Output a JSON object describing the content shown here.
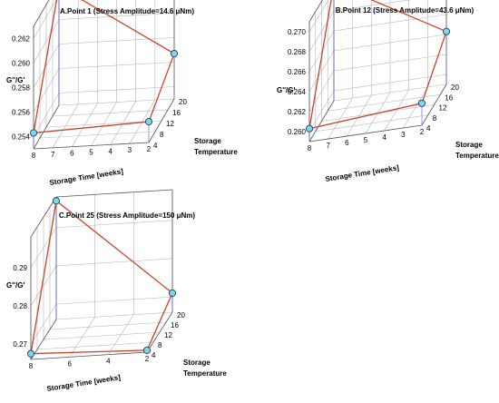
{
  "chart_data": [
    {
      "type": "scatter",
      "title": "A.Point 1 (Stress Amplitude=14.6 μNm)",
      "xlabel": "Storage Time [weeks]",
      "ylabel": "Storage Temperature",
      "zlabel": "G''/G'",
      "x_ticks": [
        "8",
        "7",
        "6",
        "5",
        "4",
        "3",
        "2"
      ],
      "y_ticks": [
        "4",
        "8",
        "12",
        "16",
        "20"
      ],
      "z_ticks": [
        "0.254",
        "0.256",
        "0.258",
        "0.260",
        "0.262"
      ],
      "xlim": [
        2,
        8
      ],
      "ylim": [
        4,
        20
      ],
      "zlim": [
        0.253,
        0.263
      ],
      "points": [
        {
          "x": 8,
          "y": 4,
          "z": 0.2543
        },
        {
          "x": 2,
          "y": 4,
          "z": 0.2547
        },
        {
          "x": 2,
          "y": 20,
          "z": 0.2567
        },
        {
          "x": 8,
          "y": 20,
          "z": 0.2627
        }
      ],
      "colors": {
        "line": "#c8442c",
        "marker": "#7fd7e8",
        "drop": "#6a6adf"
      }
    },
    {
      "type": "scatter",
      "title": "B.Point 12 (Stress Amplitude=43.6 μNm)",
      "xlabel": "Storage Time [weeks]",
      "ylabel": "Storage Temperature",
      "zlabel": "G''/G'",
      "x_ticks": [
        "8",
        "7",
        "6",
        "5",
        "4",
        "3",
        "2"
      ],
      "y_ticks": [
        "4",
        "8",
        "12",
        "16",
        "20"
      ],
      "z_ticks": [
        "0.260",
        "0.262",
        "0.264",
        "0.266",
        "0.268",
        "0.270"
      ],
      "xlim": [
        2,
        8
      ],
      "ylim": [
        4,
        20
      ],
      "zlim": [
        0.259,
        0.271
      ],
      "points": [
        {
          "x": 8,
          "y": 4,
          "z": 0.2603
        },
        {
          "x": 2,
          "y": 4,
          "z": 0.2612
        },
        {
          "x": 2,
          "y": 20,
          "z": 0.2643
        },
        {
          "x": 8,
          "y": 20,
          "z": 0.2707
        }
      ],
      "colors": {
        "line": "#c8442c",
        "marker": "#7fd7e8",
        "drop": "#6a6adf"
      }
    },
    {
      "type": "scatter",
      "title": "C.Point 25 (Stress Amplitude=150 μNm)",
      "xlabel": "Storage Time [weeks]",
      "ylabel": "Storage Temperature",
      "zlabel": "G''/G'",
      "x_ticks": [
        "8",
        "6",
        "4",
        "2"
      ],
      "y_ticks": [
        "4",
        "8",
        "12",
        "16",
        "20"
      ],
      "z_ticks": [
        "0.27",
        "0.28",
        "0.29"
      ],
      "xlim": [
        2,
        8
      ],
      "ylim": [
        4,
        20
      ],
      "zlim": [
        0.266,
        0.298
      ],
      "points": [
        {
          "x": 8,
          "y": 4,
          "z": 0.2675
        },
        {
          "x": 2,
          "y": 4,
          "z": 0.2665
        },
        {
          "x": 2,
          "y": 20,
          "z": 0.271
        },
        {
          "x": 8,
          "y": 20,
          "z": 0.297
        }
      ],
      "colors": {
        "line": "#c8442c",
        "marker": "#7fd7e8",
        "drop": "#6a6adf"
      }
    }
  ]
}
